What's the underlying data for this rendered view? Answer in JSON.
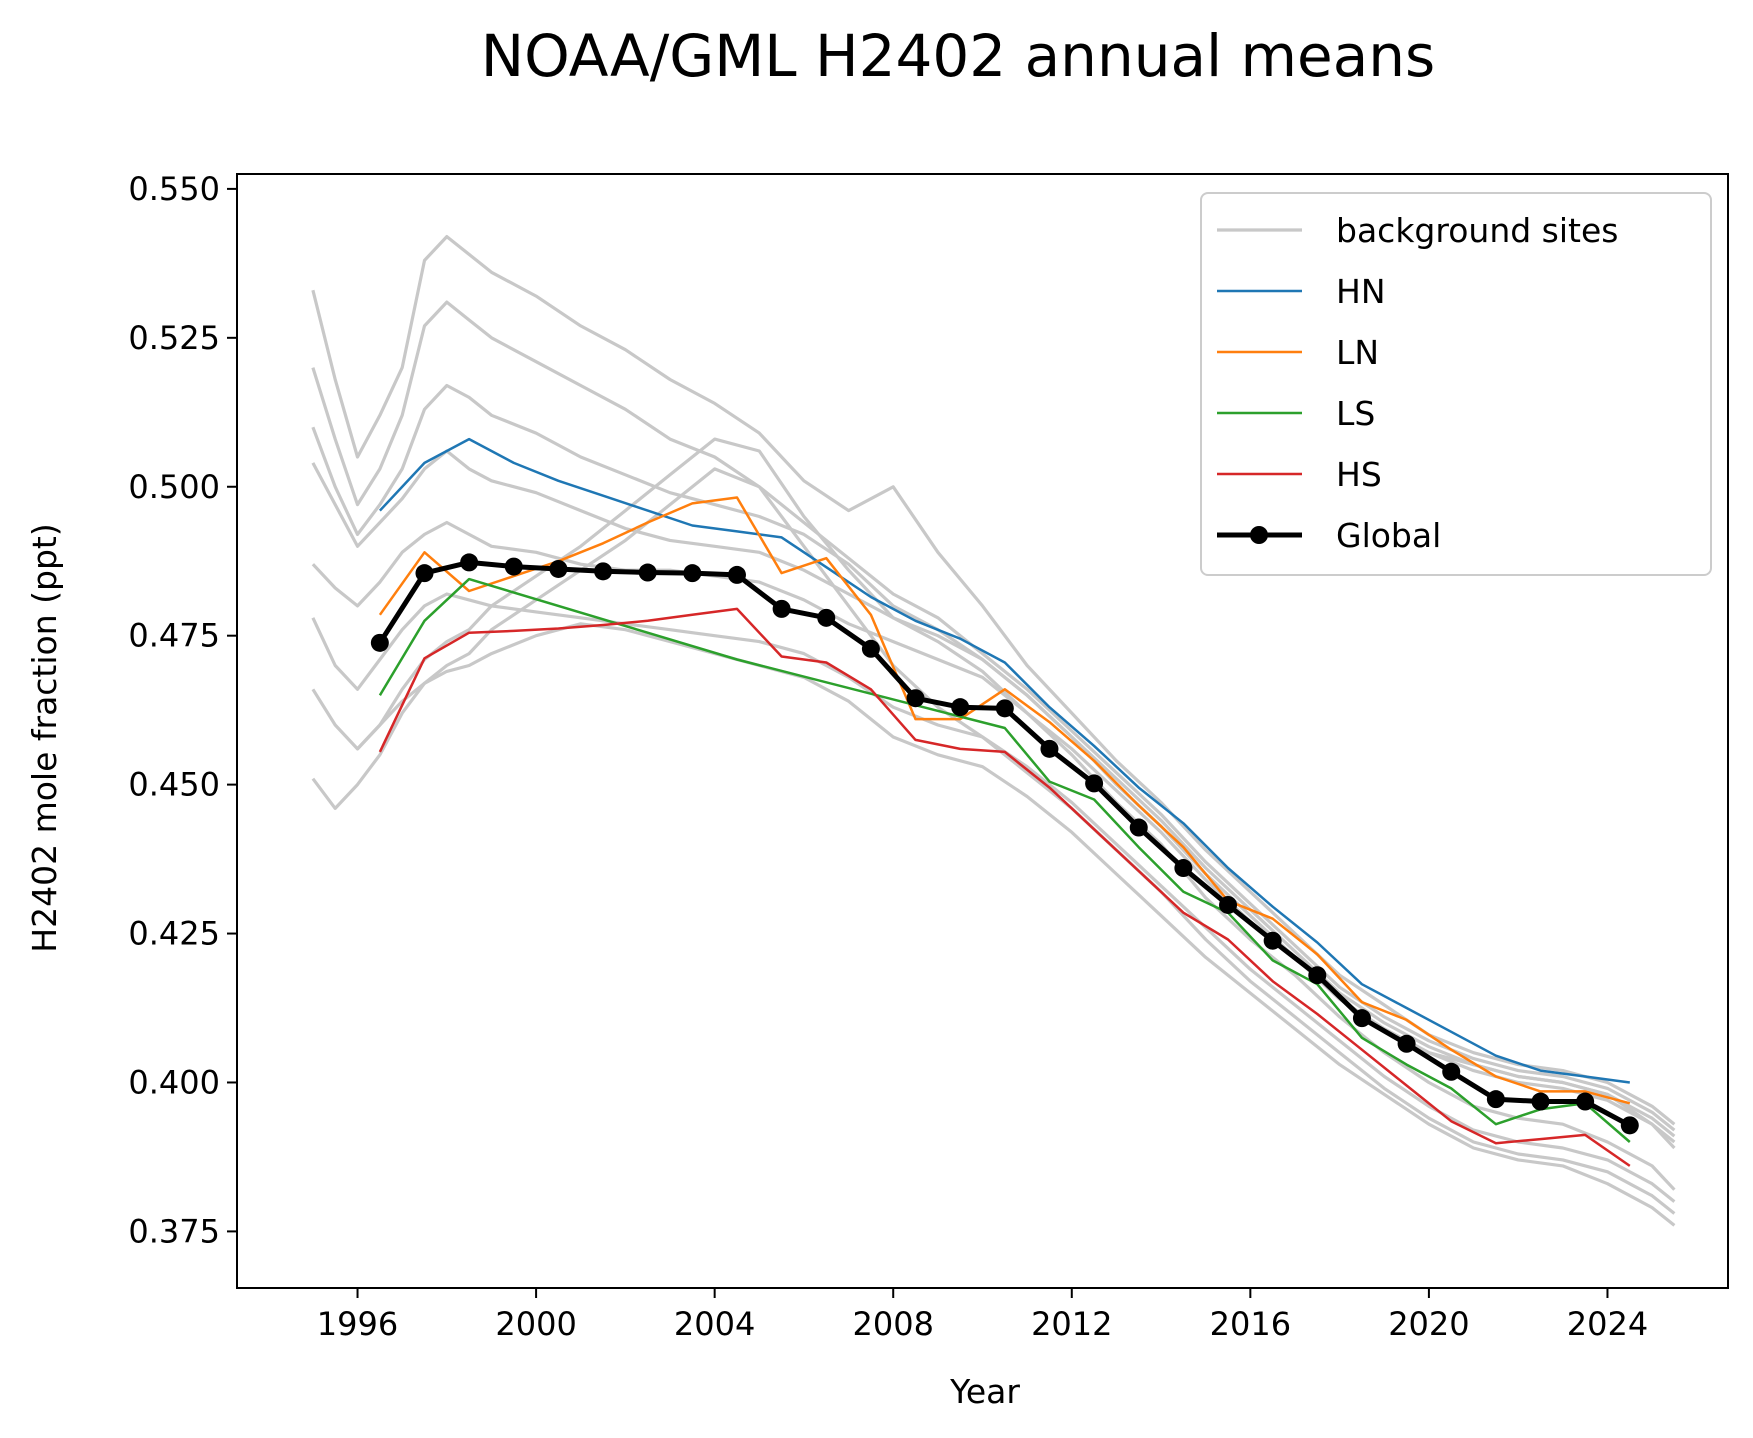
{
  "chart_data": {
    "type": "line",
    "title": "NOAA/GML H2402 annual means",
    "xlabel": "Year",
    "ylabel": "H2402 mole fraction (ppt)",
    "xlim": [
      1993.3,
      2026.7
    ],
    "ylim": [
      0.3655,
      0.5525
    ],
    "xticks": [
      1996,
      2000,
      2004,
      2008,
      2012,
      2016,
      2020,
      2024
    ],
    "yticks": [
      0.375,
      0.4,
      0.425,
      0.45,
      0.475,
      0.5,
      0.525,
      0.55
    ],
    "ytick_labels": [
      "0.375",
      "0.400",
      "0.425",
      "0.450",
      "0.475",
      "0.500",
      "0.525",
      "0.550"
    ],
    "grid": false,
    "legend_position": "upper right",
    "legend": [
      {
        "label": "background sites",
        "color": "#c8c8c8",
        "kind": "line"
      },
      {
        "label": "HN",
        "color": "#1f77b4",
        "kind": "line"
      },
      {
        "label": "LN",
        "color": "#ff7f0e",
        "kind": "line"
      },
      {
        "label": "LS",
        "color": "#2ca02c",
        "kind": "line"
      },
      {
        "label": "HS",
        "color": "#d62728",
        "kind": "line"
      },
      {
        "label": "Global",
        "color": "#000000",
        "kind": "line-marker"
      }
    ],
    "series": [
      {
        "name": "HN",
        "color": "#1f77b4",
        "width": 2.5,
        "x": [
          1996.5,
          1997.5,
          1998.5,
          1999.5,
          2000.5,
          2001.5,
          2002.5,
          2003.5,
          2004.5,
          2005.5,
          2006.5,
          2007.5,
          2008.5,
          2009.5,
          2010.5,
          2011.5,
          2012.5,
          2013.5,
          2014.5,
          2015.5,
          2016.5,
          2017.5,
          2018.5,
          2019.5,
          2020.5,
          2021.5,
          2022.5,
          2023.5,
          2024.5
        ],
        "y": [
          0.496,
          0.504,
          0.508,
          0.504,
          0.501,
          0.4985,
          0.496,
          0.4935,
          0.4925,
          0.4915,
          0.4865,
          0.4815,
          0.4775,
          0.4745,
          0.4705,
          0.463,
          0.4565,
          0.4495,
          0.4435,
          0.436,
          0.4295,
          0.4235,
          0.4165,
          0.4125,
          0.4085,
          0.4045,
          0.402,
          0.401,
          0.4
        ]
      },
      {
        "name": "LN",
        "color": "#ff7f0e",
        "width": 2.5,
        "x": [
          1996.5,
          1997.5,
          1998.5,
          1999.5,
          2000.5,
          2001.5,
          2002.5,
          2003.5,
          2004.5,
          2005.5,
          2006.5,
          2007.5,
          2008.5,
          2009.5,
          2010.5,
          2011.5,
          2012.5,
          2013.5,
          2014.5,
          2015.5,
          2016.5,
          2017.5,
          2018.5,
          2019.5,
          2020.5,
          2021.5,
          2022.5,
          2023.5,
          2024.5
        ],
        "y": [
          0.4785,
          0.489,
          0.4825,
          0.485,
          0.4875,
          0.4905,
          0.494,
          0.4972,
          0.4982,
          0.4855,
          0.488,
          0.4785,
          0.461,
          0.461,
          0.466,
          0.4605,
          0.454,
          0.4465,
          0.4395,
          0.4305,
          0.4275,
          0.4215,
          0.4135,
          0.4105,
          0.4055,
          0.401,
          0.3985,
          0.3985,
          0.3965
        ]
      },
      {
        "name": "LS",
        "color": "#2ca02c",
        "width": 2.5,
        "x": [
          1996.5,
          1997.5,
          1998.5,
          2004.5,
          2010.5,
          2011.5,
          2012.5,
          2013.5,
          2014.5,
          2015.5,
          2016.5,
          2017.5,
          2018.5,
          2019.5,
          2020.5,
          2021.5,
          2022.5,
          2023.5,
          2024.5
        ],
        "y": [
          0.465,
          0.4775,
          0.4845,
          0.471,
          0.4595,
          0.4505,
          0.4475,
          0.4395,
          0.432,
          0.4285,
          0.4205,
          0.4165,
          0.4075,
          0.403,
          0.399,
          0.393,
          0.3955,
          0.3965,
          0.39
        ]
      },
      {
        "name": "HS",
        "color": "#d62728",
        "width": 2.5,
        "x": [
          1996.5,
          1997.5,
          1998.5,
          1999.5,
          2000.5,
          2001.5,
          2002.5,
          2003.5,
          2004.5,
          2005.5,
          2006.5,
          2007.5,
          2008.5,
          2009.5,
          2010.5,
          2011.5,
          2012.5,
          2013.5,
          2014.5,
          2015.5,
          2016.5,
          2017.5,
          2018.5,
          2019.5,
          2020.5,
          2021.5,
          2022.5,
          2023.5,
          2024.5
        ],
        "y": [
          0.4555,
          0.4712,
          0.4755,
          0.4758,
          0.4762,
          0.4768,
          0.4775,
          0.4785,
          0.4795,
          0.4715,
          0.4705,
          0.466,
          0.4575,
          0.456,
          0.4555,
          0.4495,
          0.4425,
          0.4355,
          0.4285,
          0.424,
          0.417,
          0.4115,
          0.4055,
          0.3995,
          0.3935,
          0.3898,
          0.3905,
          0.3912,
          0.386
        ]
      },
      {
        "name": "Global",
        "color": "#000000",
        "width": 5,
        "markers": true,
        "x": [
          1996.5,
          1997.5,
          1998.5,
          1999.5,
          2000.5,
          2001.5,
          2002.5,
          2003.5,
          2004.5,
          2005.5,
          2006.5,
          2007.5,
          2008.5,
          2009.5,
          2010.5,
          2011.5,
          2012.5,
          2013.5,
          2014.5,
          2015.5,
          2016.5,
          2017.5,
          2018.5,
          2019.5,
          2020.5,
          2021.5,
          2022.5,
          2023.5,
          2024.5
        ],
        "y": [
          0.4738,
          0.4855,
          0.4873,
          0.4866,
          0.4862,
          0.4858,
          0.4856,
          0.4855,
          0.4852,
          0.4795,
          0.478,
          0.4728,
          0.4645,
          0.463,
          0.4628,
          0.456,
          0.4502,
          0.4428,
          0.436,
          0.4298,
          0.4238,
          0.418,
          0.4108,
          0.4065,
          0.4018,
          0.3972,
          0.3968,
          0.3968,
          0.3928
        ]
      }
    ],
    "background_sites": [
      {
        "x": [
          1995.0,
          1995.5,
          1996.0,
          1996.5,
          1997.0,
          1997.5,
          1998.0,
          1998.5,
          1999.0,
          2000.0,
          2001.0,
          2002.0,
          2003.0,
          2004.0,
          2005.0,
          2006.0,
          2007.0,
          2008.0,
          2009.0,
          2010.0,
          2011.0,
          2012.0,
          2013.0,
          2014.0,
          2015.0,
          2016.0,
          2017.0,
          2018.0,
          2019.0,
          2020.0,
          2021.0,
          2022.0,
          2023.0,
          2024.0,
          2025.0,
          2025.5
        ],
        "y": [
          0.533,
          0.518,
          0.505,
          0.512,
          0.52,
          0.538,
          0.542,
          0.539,
          0.536,
          0.532,
          0.527,
          0.523,
          0.518,
          0.514,
          0.509,
          0.501,
          0.496,
          0.5,
          0.489,
          0.48,
          0.47,
          0.462,
          0.454,
          0.447,
          0.439,
          0.432,
          0.425,
          0.418,
          0.413,
          0.408,
          0.405,
          0.403,
          0.402,
          0.4,
          0.396,
          0.393
        ]
      },
      {
        "x": [
          1995.0,
          1995.5,
          1996.0,
          1996.5,
          1997.0,
          1997.5,
          1998.0,
          1998.5,
          1999.0,
          2000.0,
          2001.0,
          2002.0,
          2003.0,
          2004.0,
          2005.0,
          2006.0,
          2007.0,
          2008.0,
          2009.0,
          2010.0,
          2011.0,
          2012.0,
          2013.0,
          2014.0,
          2015.0,
          2016.0,
          2017.0,
          2018.0,
          2019.0,
          2020.0,
          2021.0,
          2022.0,
          2023.0,
          2024.0,
          2025.0,
          2025.5
        ],
        "y": [
          0.52,
          0.508,
          0.497,
          0.503,
          0.512,
          0.527,
          0.531,
          0.528,
          0.525,
          0.521,
          0.517,
          0.513,
          0.508,
          0.505,
          0.5,
          0.494,
          0.488,
          0.482,
          0.478,
          0.472,
          0.466,
          0.459,
          0.452,
          0.445,
          0.437,
          0.43,
          0.423,
          0.416,
          0.411,
          0.407,
          0.404,
          0.402,
          0.401,
          0.399,
          0.395,
          0.392
        ]
      },
      {
        "x": [
          1995.0,
          1995.5,
          1996.0,
          1996.5,
          1997.0,
          1997.5,
          1998.0,
          1998.5,
          1999.0,
          2000.0,
          2001.0,
          2002.0,
          2003.0,
          2004.0,
          2005.0,
          2006.0,
          2007.0,
          2008.0,
          2009.0,
          2010.0,
          2011.0,
          2012.0,
          2013.0,
          2014.0,
          2015.0,
          2016.0,
          2017.0,
          2018.0,
          2019.0,
          2020.0,
          2021.0,
          2022.0,
          2023.0,
          2024.0,
          2025.0,
          2025.5
        ],
        "y": [
          0.504,
          0.497,
          0.49,
          0.494,
          0.498,
          0.503,
          0.506,
          0.503,
          0.501,
          0.499,
          0.496,
          0.493,
          0.491,
          0.49,
          0.489,
          0.486,
          0.482,
          0.478,
          0.475,
          0.471,
          0.465,
          0.458,
          0.451,
          0.444,
          0.436,
          0.429,
          0.422,
          0.415,
          0.41,
          0.406,
          0.403,
          0.401,
          0.4,
          0.398,
          0.394,
          0.391
        ]
      },
      {
        "x": [
          1995.0,
          1995.5,
          1996.0,
          1996.5,
          1997.0,
          1997.5,
          1998.0,
          1998.5,
          1999.0,
          2000.0,
          2001.0,
          2002.0,
          2003.0,
          2004.0,
          2005.0,
          2006.0,
          2007.0,
          2008.0,
          2009.0,
          2010.0,
          2011.0,
          2012.0,
          2013.0,
          2014.0,
          2015.0,
          2016.0,
          2017.0,
          2018.0,
          2019.0,
          2020.0,
          2021.0,
          2022.0,
          2023.0,
          2024.0,
          2025.0,
          2025.5
        ],
        "y": [
          0.487,
          0.483,
          0.48,
          0.484,
          0.489,
          0.492,
          0.494,
          0.492,
          0.49,
          0.489,
          0.487,
          0.486,
          0.486,
          0.485,
          0.484,
          0.481,
          0.477,
          0.474,
          0.471,
          0.468,
          0.462,
          0.456,
          0.449,
          0.442,
          0.434,
          0.427,
          0.421,
          0.414,
          0.409,
          0.405,
          0.402,
          0.4,
          0.399,
          0.397,
          0.393,
          0.39
        ]
      },
      {
        "x": [
          1995.0,
          1995.5,
          1996.0,
          1996.5,
          1997.0,
          1997.5,
          1998.0,
          1998.5,
          1999.0,
          2000.0,
          2001.0,
          2002.0,
          2003.0,
          2004.0,
          2005.0,
          2006.0,
          2007.0,
          2008.0,
          2009.0,
          2010.0,
          2011.0,
          2012.0,
          2013.0,
          2014.0,
          2015.0,
          2016.0,
          2017.0,
          2018.0,
          2019.0,
          2020.0,
          2021.0,
          2022.0,
          2023.0,
          2024.0,
          2025.0,
          2025.5
        ],
        "y": [
          0.466,
          0.46,
          0.456,
          0.46,
          0.466,
          0.471,
          0.474,
          0.476,
          0.48,
          0.485,
          0.49,
          0.496,
          0.502,
          0.508,
          0.506,
          0.495,
          0.486,
          0.478,
          0.474,
          0.469,
          0.462,
          0.455,
          0.447,
          0.44,
          0.431,
          0.424,
          0.418,
          0.411,
          0.405,
          0.4,
          0.396,
          0.394,
          0.393,
          0.39,
          0.386,
          0.382
        ]
      },
      {
        "x": [
          1995.0,
          1995.5,
          1996.0,
          1996.5,
          1997.0,
          1997.5,
          1998.0,
          1998.5,
          1999.0,
          2000.0,
          2001.0,
          2002.0,
          2003.0,
          2004.0,
          2005.0,
          2006.0,
          2007.0,
          2008.0,
          2009.0,
          2010.0,
          2011.0,
          2012.0,
          2013.0,
          2014.0,
          2015.0,
          2016.0,
          2017.0,
          2018.0,
          2019.0,
          2020.0,
          2021.0,
          2022.0,
          2023.0,
          2024.0,
          2025.0,
          2025.5
        ],
        "y": [
          0.451,
          0.446,
          0.45,
          0.455,
          0.462,
          0.467,
          0.47,
          0.472,
          0.476,
          0.481,
          0.486,
          0.491,
          0.497,
          0.503,
          0.5,
          0.49,
          0.48,
          0.47,
          0.463,
          0.458,
          0.452,
          0.446,
          0.439,
          0.432,
          0.424,
          0.417,
          0.411,
          0.405,
          0.399,
          0.394,
          0.39,
          0.388,
          0.387,
          0.385,
          0.381,
          0.378
        ]
      },
      {
        "x": [
          1996.0,
          1996.5,
          1997.0,
          1997.5,
          1998.0,
          1998.5,
          1999.0,
          2000.0,
          2001.0,
          2002.0,
          2003.0,
          2004.0,
          2005.0,
          2006.0,
          2007.0,
          2008.0,
          2009.0,
          2010.0,
          2011.0,
          2012.0,
          2013.0,
          2014.0,
          2015.0,
          2016.0,
          2017.0,
          2018.0,
          2019.0,
          2020.0,
          2021.0,
          2022.0,
          2023.0,
          2024.0,
          2025.0,
          2025.5
        ],
        "y": [
          0.456,
          0.46,
          0.464,
          0.467,
          0.469,
          0.47,
          0.472,
          0.475,
          0.477,
          0.476,
          0.474,
          0.472,
          0.47,
          0.468,
          0.464,
          0.458,
          0.455,
          0.453,
          0.448,
          0.442,
          0.435,
          0.428,
          0.421,
          0.415,
          0.409,
          0.403,
          0.398,
          0.393,
          0.389,
          0.387,
          0.386,
          0.383,
          0.379,
          0.376
        ]
      },
      {
        "x": [
          1995.0,
          1995.5,
          1996.0,
          1996.5,
          1997.0,
          1997.5,
          1998.0,
          1998.5,
          1999.0,
          2000.0,
          2001.0,
          2002.0,
          2003.0,
          2004.0,
          2005.0,
          2006.0,
          2007.0,
          2008.0,
          2009.0,
          2010.0,
          2011.0,
          2012.0,
          2013.0,
          2014.0,
          2015.0,
          2016.0,
          2017.0,
          2018.0,
          2019.0,
          2020.0,
          2021.0,
          2022.0,
          2023.0,
          2024.0,
          2025.0,
          2025.5
        ],
        "y": [
          0.51,
          0.5,
          0.492,
          0.497,
          0.503,
          0.513,
          0.517,
          0.515,
          0.512,
          0.509,
          0.505,
          0.502,
          0.499,
          0.497,
          0.495,
          0.492,
          0.487,
          0.48,
          0.476,
          0.471,
          0.465,
          0.458,
          0.45,
          0.443,
          0.435,
          0.428,
          0.421,
          0.414,
          0.409,
          0.405,
          0.403,
          0.401,
          0.4,
          0.398,
          0.393,
          0.389
        ]
      },
      {
        "x": [
          1995.0,
          1995.5,
          1996.0,
          1996.5,
          1997.0,
          1997.5,
          1998.0,
          1998.5,
          1999.0,
          2000.0,
          2001.0,
          2002.0,
          2003.0,
          2004.0,
          2005.0,
          2006.0,
          2007.0,
          2008.0,
          2009.0,
          2010.0,
          2011.0,
          2012.0,
          2013.0,
          2014.0,
          2015.0,
          2016.0,
          2017.0,
          2018.0,
          2019.0,
          2020.0,
          2021.0,
          2022.0,
          2023.0,
          2024.0,
          2025.0,
          2025.5
        ],
        "y": [
          0.478,
          0.47,
          0.466,
          0.471,
          0.476,
          0.48,
          0.482,
          0.481,
          0.48,
          0.479,
          0.478,
          0.477,
          0.476,
          0.475,
          0.474,
          0.472,
          0.468,
          0.463,
          0.46,
          0.458,
          0.453,
          0.447,
          0.44,
          0.433,
          0.426,
          0.419,
          0.413,
          0.407,
          0.401,
          0.396,
          0.392,
          0.39,
          0.389,
          0.387,
          0.383,
          0.38
        ]
      }
    ]
  }
}
